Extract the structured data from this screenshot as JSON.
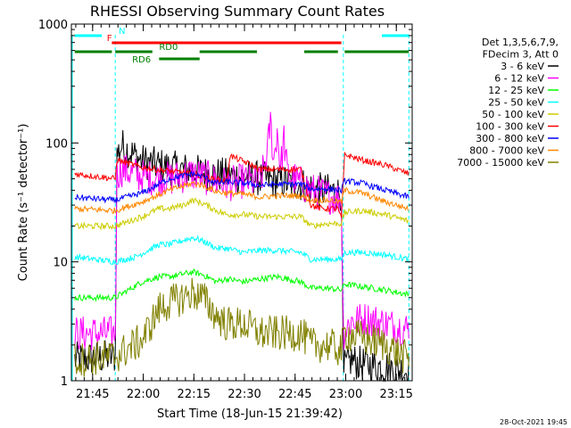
{
  "chart_data": {
    "type": "line",
    "title": "RHESSI Observing Summary Count Rates",
    "xlabel": "Start Time (18-Jun-15 21:39:42)",
    "ylabel": "Count Rate (s⁻¹ detector⁻¹)",
    "yscale": "log",
    "ylim": [
      1,
      1000
    ],
    "xlim_minutes": [
      -1,
      100
    ],
    "y_ticks": [
      {
        "value": 1,
        "label": "1"
      },
      {
        "value": 10,
        "label": "10"
      },
      {
        "value": 100,
        "label": "100"
      },
      {
        "value": 1000,
        "label": "1000"
      }
    ],
    "x_ticks": [
      {
        "minute": 5.3,
        "label": "21:45"
      },
      {
        "minute": 20.3,
        "label": "22:00"
      },
      {
        "minute": 35.3,
        "label": "22:15"
      },
      {
        "minute": 50.3,
        "label": "22:30"
      },
      {
        "minute": 65.3,
        "label": "22:45"
      },
      {
        "minute": 80.3,
        "label": "23:00"
      },
      {
        "minute": 95.3,
        "label": "23:15"
      }
    ],
    "legend": {
      "header": [
        "Det 1,3,5,6,7,9,",
        "FDecim 3, Att 0"
      ],
      "position": "right"
    },
    "series": [
      {
        "name": "3 - 6 keV",
        "color": "#000000",
        "x": [
          0,
          12,
          12.5,
          14,
          20,
          28,
          35,
          40,
          46,
          50,
          55,
          60,
          67,
          70,
          73,
          79,
          79.6,
          80,
          82,
          84,
          92,
          99
        ],
        "y": [
          1.5,
          1.6,
          80,
          95,
          70,
          62,
          58,
          55,
          53,
          52,
          50,
          48,
          45,
          42,
          40,
          38,
          1,
          1.3,
          1.5,
          1.4,
          1.3,
          1.2
        ]
      },
      {
        "name": "6 - 12 keV",
        "color": "#ff00ff",
        "x": [
          0,
          12,
          12.5,
          14,
          20,
          28,
          35,
          40,
          45,
          50,
          55,
          57,
          58,
          59,
          60,
          61,
          62,
          63,
          65,
          70,
          75,
          79,
          79.6,
          82,
          87,
          92,
          99
        ],
        "y": [
          2.5,
          2.5,
          55,
          60,
          52,
          50,
          55,
          50,
          45,
          48,
          46,
          80,
          150,
          70,
          130,
          60,
          110,
          55,
          50,
          40,
          36,
          34,
          2.5,
          3.2,
          3.3,
          3,
          2.7
        ]
      },
      {
        "name": "12 - 25 keV",
        "color": "#00ff00",
        "x": [
          0,
          12,
          20,
          25,
          28,
          35,
          38,
          42,
          45,
          50,
          55,
          60,
          67,
          70,
          75,
          79,
          80,
          85,
          92,
          99
        ],
        "y": [
          5,
          5,
          6.8,
          7.5,
          7.5,
          8.2,
          7.8,
          6.8,
          7.2,
          6.8,
          7.2,
          7.5,
          6.8,
          6,
          6,
          5.8,
          6.5,
          6.2,
          5.8,
          5.3
        ]
      },
      {
        "name": "25 - 50 keV",
        "color": "#00ffff",
        "x": [
          0,
          12,
          18,
          25,
          28,
          35,
          38,
          42,
          45,
          50,
          55,
          60,
          67,
          70,
          75,
          79,
          80,
          85,
          92,
          99
        ],
        "y": [
          11,
          10,
          11,
          14,
          14,
          16,
          15,
          13,
          13,
          12,
          12.5,
          12.5,
          12,
          10.5,
          10.5,
          10.5,
          12,
          12,
          11.5,
          10.5
        ]
      },
      {
        "name": "50 - 100 keV",
        "color": "#cccc00",
        "x": [
          0,
          12,
          20,
          25,
          28,
          32,
          35,
          38,
          42,
          45,
          50,
          55,
          60,
          67,
          70,
          75,
          79,
          80,
          85,
          92,
          99
        ],
        "y": [
          20,
          20,
          24,
          28,
          28,
          30,
          33,
          31,
          27,
          25,
          25,
          24,
          24,
          24,
          20,
          21,
          21,
          26,
          27,
          25,
          22
        ]
      },
      {
        "name": "100 - 300 keV",
        "color": "#ff0000",
        "x": [
          0,
          12,
          12.5,
          20,
          28,
          35,
          40,
          45,
          46,
          50,
          55,
          60,
          67,
          70,
          73,
          78,
          79,
          80,
          85,
          92,
          99
        ],
        "y": [
          55,
          50,
          72,
          62,
          58,
          55,
          50,
          48,
          78,
          70,
          60,
          60,
          60,
          30,
          28,
          28,
          23,
          80,
          72,
          65,
          55
        ]
      },
      {
        "name": "300 - 800 keV",
        "color": "#0000ff",
        "x": [
          0,
          12,
          20,
          28,
          35,
          38,
          42,
          45,
          50,
          55,
          60,
          67,
          70,
          75,
          79,
          80,
          85,
          92,
          99
        ],
        "y": [
          35,
          33,
          38,
          50,
          55,
          52,
          46,
          47,
          46,
          44,
          45,
          45,
          41,
          41,
          40,
          48,
          46,
          40,
          35
        ]
      },
      {
        "name": "800 - 7000 keV",
        "color": "#ff8800",
        "x": [
          0,
          12,
          20,
          28,
          35,
          38,
          42,
          45,
          50,
          55,
          60,
          67,
          70,
          75,
          79,
          80,
          85,
          92,
          99
        ],
        "y": [
          28,
          27,
          32,
          40,
          46,
          44,
          39,
          38,
          37,
          35,
          36,
          36,
          33,
          33,
          32,
          40,
          38,
          32,
          28
        ]
      },
      {
        "name": "7000 - 15000 keV",
        "color": "#808000",
        "x": [
          0,
          12,
          20,
          25,
          28,
          32,
          35,
          38,
          42,
          45,
          50,
          55,
          60,
          67,
          70,
          75,
          79,
          80,
          85,
          92,
          99
        ],
        "y": [
          1.5,
          1.6,
          2.2,
          4,
          4.5,
          5,
          5.5,
          5,
          3.5,
          3,
          3,
          2.5,
          2.5,
          2.5,
          2,
          2,
          1.8,
          2.5,
          2.3,
          2,
          1.5
        ]
      }
    ],
    "annotations": [
      {
        "label": "N",
        "color": "#00ffff",
        "segments": [
          [
            0,
            8
          ],
          [
            91,
            99
          ]
        ]
      },
      {
        "label": "F",
        "color": "#ff0000",
        "segments": [
          [
            11,
            79
          ]
        ]
      },
      {
        "label": "RD0",
        "color": "#008000",
        "segments": [
          [
            0,
            11
          ],
          [
            12,
            23
          ],
          [
            37,
            54
          ],
          [
            68,
            78
          ],
          [
            80,
            99
          ]
        ]
      },
      {
        "label": "RD6",
        "color": "#008000",
        "segments": [
          [
            25,
            37
          ]
        ]
      }
    ],
    "cyan_markers_minute": [
      12,
      79.6
    ],
    "annotation_label_positions_minute": {
      "N": 13,
      "F": 9.5,
      "RD0": 25,
      "RD6": 17
    }
  },
  "footer_date": "28-Oct-2021 19:45"
}
